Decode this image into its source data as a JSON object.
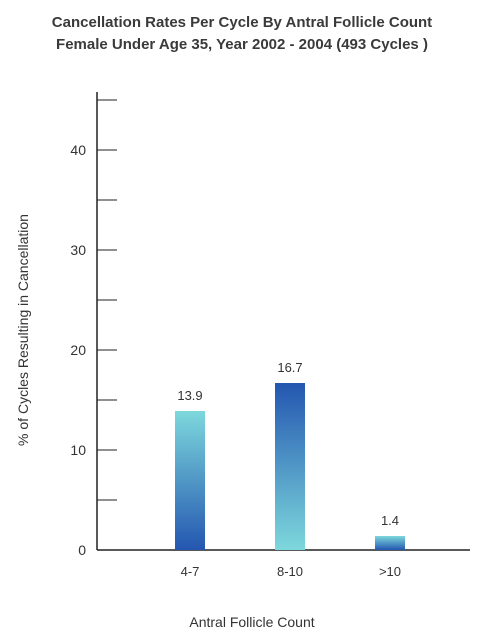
{
  "chart_data": {
    "type": "bar",
    "title": "Cancellation Rates Per Cycle By Antral Follicle Count",
    "subtitle": "Female Under Age 35, Year 2002 - 2004 (493 Cycles )",
    "xlabel": "Antral Follicle Count",
    "ylabel": "% of Cycles Resulting in Cancellation",
    "categories": [
      "4-7",
      "8-10",
      ">10"
    ],
    "values": [
      13.9,
      16.7,
      1.4
    ],
    "value_labels": [
      "13.9",
      "16.7",
      "1.4"
    ],
    "ylim": [
      0,
      45
    ],
    "yticks": [
      0,
      10,
      20,
      30,
      40
    ],
    "ytick_labels": [
      "0",
      "10",
      "20",
      "30",
      "40"
    ],
    "grid": false,
    "colors": {
      "gradient_dark": "#2456b0",
      "gradient_light": "#7dd8dc",
      "axis": "#222222"
    },
    "bar_gradients": [
      "light-top",
      "dark-top",
      "light-top"
    ]
  }
}
